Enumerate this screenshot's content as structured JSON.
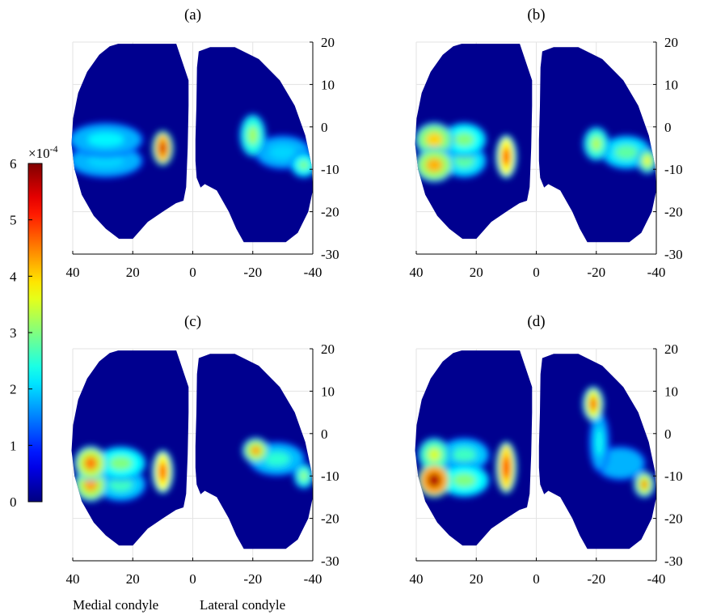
{
  "chart_data": {
    "type": "heatmap",
    "colormap": "jet",
    "colorbar": {
      "exponent_label": "×10",
      "exponent_power": "-4",
      "min": 0,
      "max": 6,
      "ticks": [
        "0",
        "1",
        "2",
        "3",
        "4",
        "5",
        "6"
      ]
    },
    "axes": {
      "x_ticks": [
        "40",
        "20",
        "0",
        "-20",
        "-40"
      ],
      "x_values": [
        40,
        20,
        0,
        -20,
        -40
      ],
      "xlim": [
        40,
        -40
      ],
      "y_ticks": [
        "20",
        "10",
        "0",
        "-10",
        "-20",
        "-30"
      ],
      "y_values": [
        20,
        10,
        0,
        -10,
        -20,
        -30
      ],
      "ylim": [
        -30,
        20
      ],
      "grid": true
    },
    "bottom_labels": [
      "Medial condyle",
      "Lateral condyle"
    ],
    "panels": [
      {
        "label": "(a)",
        "hotspots": [
          {
            "x": 29,
            "y": -3,
            "value": 2.2,
            "rx": 11,
            "ry": 3
          },
          {
            "x": 29,
            "y": -8,
            "value": 2.0,
            "rx": 11,
            "ry": 3
          },
          {
            "x": 10,
            "y": -5,
            "value": 5.5,
            "rx": 2,
            "ry": 3
          },
          {
            "x": -20,
            "y": -2,
            "value": 3.2,
            "rx": 3,
            "ry": 4
          },
          {
            "x": -30,
            "y": -6,
            "value": 2.0,
            "rx": 8,
            "ry": 3
          },
          {
            "x": -37,
            "y": -9,
            "value": 3.0,
            "rx": 3,
            "ry": 2
          }
        ]
      },
      {
        "label": "(b)",
        "hotspots": [
          {
            "x": 34,
            "y": -3,
            "value": 4.0,
            "rx": 5,
            "ry": 3
          },
          {
            "x": 34,
            "y": -9,
            "value": 4.2,
            "rx": 5,
            "ry": 3
          },
          {
            "x": 24,
            "y": -3,
            "value": 3.0,
            "rx": 6,
            "ry": 3
          },
          {
            "x": 24,
            "y": -8,
            "value": 2.8,
            "rx": 6,
            "ry": 3
          },
          {
            "x": 10,
            "y": -7,
            "value": 5.0,
            "rx": 2,
            "ry": 4
          },
          {
            "x": -20,
            "y": -4,
            "value": 3.3,
            "rx": 3,
            "ry": 3
          },
          {
            "x": -30,
            "y": -6,
            "value": 2.8,
            "rx": 7,
            "ry": 3
          },
          {
            "x": -37,
            "y": -8,
            "value": 3.8,
            "rx": 2,
            "ry": 2
          }
        ]
      },
      {
        "label": "(c)",
        "hotspots": [
          {
            "x": 34,
            "y": -7,
            "value": 4.5,
            "rx": 4,
            "ry": 3
          },
          {
            "x": 34,
            "y": -12,
            "value": 4.3,
            "rx": 4,
            "ry": 3
          },
          {
            "x": 24,
            "y": -7,
            "value": 3.0,
            "rx": 7,
            "ry": 3
          },
          {
            "x": 24,
            "y": -12,
            "value": 2.6,
            "rx": 7,
            "ry": 3
          },
          {
            "x": 10,
            "y": -9,
            "value": 5.0,
            "rx": 2,
            "ry": 4
          },
          {
            "x": -21,
            "y": -4,
            "value": 4.3,
            "rx": 3,
            "ry": 2
          },
          {
            "x": -28,
            "y": -6,
            "value": 2.5,
            "rx": 8,
            "ry": 3
          },
          {
            "x": -37,
            "y": -10,
            "value": 3.2,
            "rx": 2,
            "ry": 2
          }
        ]
      },
      {
        "label": "(d)",
        "hotspots": [
          {
            "x": 34,
            "y": -5,
            "value": 3.5,
            "rx": 4,
            "ry": 3
          },
          {
            "x": 34,
            "y": -11,
            "value": 5.7,
            "rx": 4,
            "ry": 3
          },
          {
            "x": 24,
            "y": -5,
            "value": 2.6,
            "rx": 7,
            "ry": 3
          },
          {
            "x": 24,
            "y": -11,
            "value": 3.0,
            "rx": 7,
            "ry": 3
          },
          {
            "x": 10,
            "y": -8,
            "value": 5.2,
            "rx": 2,
            "ry": 5
          },
          {
            "x": -19,
            "y": 7,
            "value": 4.8,
            "rx": 2,
            "ry": 3
          },
          {
            "x": -21,
            "y": -2,
            "value": 2.3,
            "rx": 2,
            "ry": 6
          },
          {
            "x": -28,
            "y": -7,
            "value": 1.8,
            "rx": 7,
            "ry": 3
          },
          {
            "x": -36,
            "y": -12,
            "value": 4.5,
            "rx": 2,
            "ry": 2
          }
        ]
      }
    ]
  }
}
